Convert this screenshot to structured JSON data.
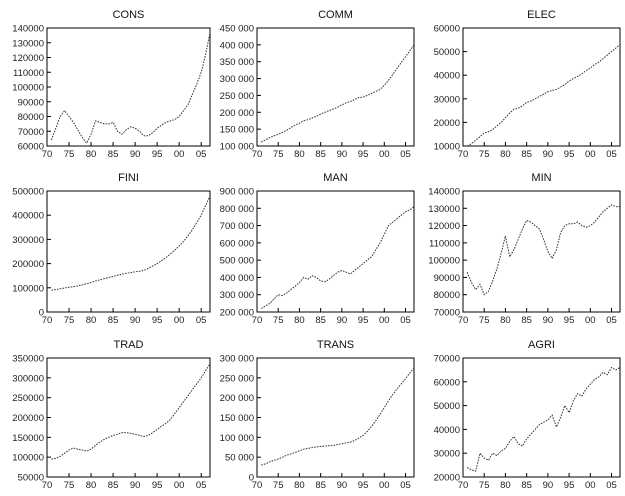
{
  "chart_data": [
    {
      "type": "line",
      "title": "CONS",
      "x": [
        1971,
        1972,
        1973,
        1974,
        1975,
        1976,
        1977,
        1978,
        1979,
        1980,
        1981,
        1982,
        1983,
        1984,
        1985,
        1986,
        1987,
        1988,
        1989,
        1990,
        1991,
        1992,
        1993,
        1994,
        1995,
        1996,
        1997,
        1998,
        1999,
        2000,
        2001,
        2002,
        2003,
        2004,
        2005,
        2006,
        2007
      ],
      "series": [
        {
          "values": [
            64000,
            72000,
            80000,
            84000,
            80000,
            76000,
            71000,
            66000,
            62000,
            68000,
            77000,
            76000,
            75000,
            75000,
            76000,
            70000,
            68000,
            71000,
            73000,
            72000,
            70000,
            67000,
            67000,
            69000,
            72000,
            74000,
            76000,
            77000,
            78000,
            80000,
            84000,
            88000,
            95000,
            102000,
            110000,
            122000,
            137000
          ]
        }
      ],
      "ylim": [
        60000,
        140000
      ],
      "yticks": [
        "60000",
        "70000",
        "80000",
        "90000",
        "100000",
        "110000",
        "120000",
        "130000",
        "140000"
      ],
      "xticks": [
        "70",
        "75",
        "80",
        "85",
        "90",
        "95",
        "00",
        "05"
      ]
    },
    {
      "type": "line",
      "title": "COMM",
      "x": [
        1971,
        1972,
        1973,
        1974,
        1975,
        1976,
        1977,
        1978,
        1979,
        1980,
        1981,
        1982,
        1983,
        1984,
        1985,
        1986,
        1987,
        1988,
        1989,
        1990,
        1991,
        1992,
        1993,
        1994,
        1995,
        1996,
        1997,
        1998,
        1999,
        2000,
        2001,
        2002,
        2003,
        2004,
        2005,
        2006,
        2007
      ],
      "series": [
        {
          "values": [
            112000,
            118000,
            125000,
            130000,
            135000,
            140000,
            147000,
            155000,
            162000,
            168000,
            175000,
            178000,
            183000,
            188000,
            195000,
            200000,
            205000,
            210000,
            215000,
            222000,
            228000,
            232000,
            238000,
            244000,
            245000,
            250000,
            256000,
            262000,
            268000,
            280000,
            295000,
            312000,
            330000,
            348000,
            365000,
            382000,
            400000
          ]
        }
      ],
      "ylim": [
        100000,
        450000
      ],
      "yticks": [
        "100 000",
        "150 000",
        "200 000",
        "250 000",
        "300 000",
        "350 000",
        "400 000",
        "450 000"
      ],
      "xticks": [
        "70",
        "75",
        "80",
        "85",
        "90",
        "95",
        "00",
        "05"
      ]
    },
    {
      "type": "line",
      "title": "ELEC",
      "x": [
        1971,
        1972,
        1973,
        1974,
        1975,
        1976,
        1977,
        1978,
        1979,
        1980,
        1981,
        1982,
        1983,
        1984,
        1985,
        1986,
        1987,
        1988,
        1989,
        1990,
        1991,
        1992,
        1993,
        1994,
        1995,
        1996,
        1997,
        1998,
        1999,
        2000,
        2001,
        2002,
        2003,
        2004,
        2005,
        2006,
        2007
      ],
      "series": [
        {
          "values": [
            10000,
            11000,
            12500,
            14000,
            15500,
            16000,
            17000,
            18500,
            20000,
            22000,
            24000,
            25500,
            26000,
            27000,
            28500,
            29000,
            30000,
            31000,
            32000,
            33000,
            33500,
            34000,
            35000,
            36000,
            37500,
            38500,
            39500,
            40500,
            42000,
            43000,
            44500,
            45500,
            47000,
            48500,
            50000,
            51500,
            53000
          ]
        }
      ],
      "ylim": [
        10000,
        60000
      ],
      "yticks": [
        "10000",
        "20000",
        "30000",
        "40000",
        "50000",
        "60000"
      ],
      "xticks": [
        "70",
        "75",
        "80",
        "85",
        "90",
        "95",
        "00",
        "05"
      ]
    },
    {
      "type": "line",
      "title": "FINI",
      "x": [
        1971,
        1972,
        1973,
        1974,
        1975,
        1976,
        1977,
        1978,
        1979,
        1980,
        1981,
        1982,
        1983,
        1984,
        1985,
        1986,
        1987,
        1988,
        1989,
        1990,
        1991,
        1992,
        1993,
        1994,
        1995,
        1996,
        1997,
        1998,
        1999,
        2000,
        2001,
        2002,
        2003,
        2004,
        2005,
        2006,
        2007
      ],
      "series": [
        {
          "values": [
            90000,
            93000,
            96000,
            99000,
            102000,
            105000,
            108000,
            112000,
            117000,
            122000,
            128000,
            133000,
            138000,
            142000,
            147000,
            152000,
            156000,
            160000,
            163000,
            166000,
            168000,
            172000,
            180000,
            190000,
            200000,
            212000,
            225000,
            240000,
            256000,
            273000,
            292000,
            315000,
            340000,
            370000,
            400000,
            440000,
            480000
          ]
        }
      ],
      "ylim": [
        0,
        500000
      ],
      "yticks": [
        "0",
        "100000",
        "200000",
        "300000",
        "400000",
        "500000"
      ],
      "xticks": [
        "70",
        "75",
        "80",
        "85",
        "90",
        "95",
        "00",
        "05"
      ]
    },
    {
      "type": "line",
      "title": "MAN",
      "x": [
        1971,
        1972,
        1973,
        1974,
        1975,
        1976,
        1977,
        1978,
        1979,
        1980,
        1981,
        1982,
        1983,
        1984,
        1985,
        1986,
        1987,
        1988,
        1989,
        1990,
        1991,
        1992,
        1993,
        1994,
        1995,
        1996,
        1997,
        1998,
        1999,
        2000,
        2001,
        2002,
        2003,
        2004,
        2005,
        2006,
        2007
      ],
      "series": [
        {
          "values": [
            220000,
            235000,
            250000,
            275000,
            300000,
            295000,
            310000,
            330000,
            350000,
            370000,
            400000,
            390000,
            410000,
            400000,
            380000,
            375000,
            390000,
            410000,
            430000,
            440000,
            430000,
            420000,
            440000,
            460000,
            480000,
            500000,
            520000,
            560000,
            600000,
            650000,
            700000,
            720000,
            740000,
            760000,
            780000,
            790000,
            810000
          ]
        }
      ],
      "ylim": [
        200000,
        900000
      ],
      "yticks": [
        "200 000",
        "300 000",
        "400 000",
        "500 000",
        "600 000",
        "700 000",
        "800 000",
        "900 000"
      ],
      "xticks": [
        "70",
        "75",
        "80",
        "85",
        "90",
        "95",
        "00",
        "05"
      ]
    },
    {
      "type": "line",
      "title": "MIN",
      "x": [
        1971,
        1972,
        1973,
        1974,
        1975,
        1976,
        1977,
        1978,
        1979,
        1980,
        1981,
        1982,
        1983,
        1984,
        1985,
        1986,
        1987,
        1988,
        1989,
        1990,
        1991,
        1992,
        1993,
        1994,
        1995,
        1996,
        1997,
        1998,
        1999,
        2000,
        2001,
        2002,
        2003,
        2004,
        2005,
        2006,
        2007
      ],
      "series": [
        {
          "values": [
            93000,
            87000,
            83000,
            86000,
            80000,
            82000,
            88000,
            95000,
            104000,
            114000,
            102000,
            106000,
            112000,
            118000,
            123000,
            122000,
            120000,
            118000,
            112000,
            105000,
            101000,
            106000,
            116000,
            120000,
            121000,
            121000,
            122000,
            120000,
            119000,
            120000,
            122000,
            125000,
            128000,
            130000,
            132000,
            131000,
            131000
          ]
        }
      ],
      "ylim": [
        70000,
        140000
      ],
      "yticks": [
        "70000",
        "80000",
        "90000",
        "100000",
        "110000",
        "120000",
        "130000",
        "140000"
      ],
      "xticks": [
        "70",
        "75",
        "80",
        "85",
        "90",
        "95",
        "00",
        "05"
      ]
    },
    {
      "type": "line",
      "title": "TRAD",
      "x": [
        1971,
        1972,
        1973,
        1974,
        1975,
        1976,
        1977,
        1978,
        1979,
        1980,
        1981,
        1982,
        1983,
        1984,
        1985,
        1986,
        1987,
        1988,
        1989,
        1990,
        1991,
        1992,
        1993,
        1994,
        1995,
        1996,
        1997,
        1998,
        1999,
        2000,
        2001,
        2002,
        2003,
        2004,
        2005,
        2006,
        2007
      ],
      "series": [
        {
          "values": [
            95000,
            97000,
            102000,
            110000,
            118000,
            123000,
            120000,
            118000,
            115000,
            120000,
            130000,
            138000,
            145000,
            150000,
            155000,
            158000,
            162000,
            162000,
            160000,
            158000,
            155000,
            152000,
            155000,
            162000,
            170000,
            178000,
            185000,
            195000,
            210000,
            225000,
            240000,
            255000,
            270000,
            285000,
            300000,
            318000,
            335000
          ]
        }
      ],
      "ylim": [
        50000,
        350000
      ],
      "yticks": [
        "50000",
        "100000",
        "150000",
        "200000",
        "250000",
        "300000",
        "350000"
      ],
      "xticks": [
        "70",
        "75",
        "80",
        "85",
        "90",
        "95",
        "00",
        "05"
      ]
    },
    {
      "type": "line",
      "title": "TRANS",
      "x": [
        1971,
        1972,
        1973,
        1974,
        1975,
        1976,
        1977,
        1978,
        1979,
        1980,
        1981,
        1982,
        1983,
        1984,
        1985,
        1986,
        1987,
        1988,
        1989,
        1990,
        1991,
        1992,
        1993,
        1994,
        1995,
        1996,
        1997,
        1998,
        1999,
        2000,
        2001,
        2002,
        2003,
        2004,
        2005,
        2006,
        2007
      ],
      "series": [
        {
          "values": [
            30000,
            33000,
            38000,
            42000,
            45000,
            50000,
            55000,
            58000,
            62000,
            66000,
            70000,
            72000,
            74000,
            76000,
            77000,
            78000,
            79000,
            80000,
            82000,
            84000,
            86000,
            88000,
            92000,
            98000,
            105000,
            115000,
            128000,
            142000,
            158000,
            175000,
            192000,
            208000,
            222000,
            235000,
            248000,
            262000,
            275000
          ]
        }
      ],
      "ylim": [
        0,
        300000
      ],
      "yticks": [
        "0",
        "50 000",
        "100 000",
        "150 000",
        "200 000",
        "250 000",
        "300 000"
      ],
      "xticks": [
        "70",
        "75",
        "80",
        "85",
        "90",
        "95",
        "00",
        "05"
      ]
    },
    {
      "type": "line",
      "title": "AGRI",
      "x": [
        1971,
        1972,
        1973,
        1974,
        1975,
        1976,
        1977,
        1978,
        1979,
        1980,
        1981,
        1982,
        1983,
        1984,
        1985,
        1986,
        1987,
        1988,
        1989,
        1990,
        1991,
        1992,
        1993,
        1994,
        1995,
        1996,
        1997,
        1998,
        1999,
        2000,
        2001,
        2002,
        2003,
        2004,
        2005,
        2006,
        2007
      ],
      "series": [
        {
          "values": [
            24000,
            23000,
            22500,
            30000,
            28000,
            27000,
            30000,
            29000,
            31000,
            32000,
            35000,
            37000,
            34000,
            33000,
            36000,
            38000,
            40000,
            42000,
            43000,
            44000,
            46000,
            41000,
            45000,
            50000,
            47000,
            52000,
            55000,
            54000,
            57000,
            59000,
            61000,
            62000,
            64000,
            63000,
            66000,
            65000,
            66000
          ]
        }
      ],
      "ylim": [
        20000,
        70000
      ],
      "yticks": [
        "20000",
        "30000",
        "40000",
        "50000",
        "60000",
        "70000"
      ],
      "xticks": [
        "70",
        "75",
        "80",
        "85",
        "90",
        "95",
        "00",
        "05"
      ]
    }
  ]
}
